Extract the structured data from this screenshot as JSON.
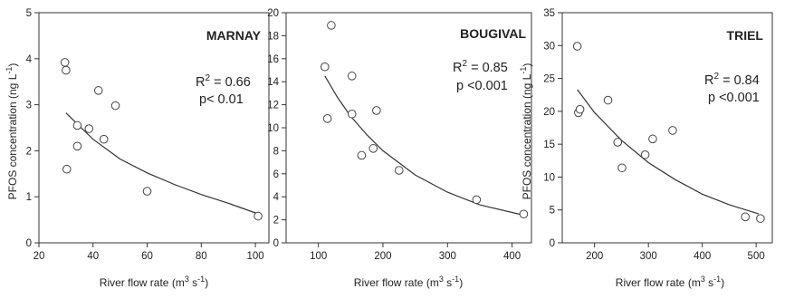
{
  "chart_data": [
    {
      "type": "scatter",
      "title": "MARNAY",
      "xlabel": "River flow rate (m3 s-1)",
      "ylabel": "PFOS concentration (ng L-1)",
      "xlim": [
        20,
        105
      ],
      "ylim": [
        0,
        5
      ],
      "xticks": [
        20,
        40,
        60,
        80,
        100
      ],
      "yticks": [
        0,
        1,
        2,
        3,
        4,
        5
      ],
      "annotations": {
        "r2_label": "R",
        "r2_sup": "2",
        "r2_value": " = 0.66",
        "p_text": "p< 0.01"
      },
      "points": [
        {
          "x": 29.6,
          "y": 3.92
        },
        {
          "x": 30.0,
          "y": 3.75
        },
        {
          "x": 30.3,
          "y": 1.6
        },
        {
          "x": 34.2,
          "y": 2.55
        },
        {
          "x": 34.2,
          "y": 2.1
        },
        {
          "x": 38.5,
          "y": 2.48
        },
        {
          "x": 42.0,
          "y": 3.31
        },
        {
          "x": 44.0,
          "y": 2.25
        },
        {
          "x": 48.3,
          "y": 2.98
        },
        {
          "x": 60.0,
          "y": 1.12
        },
        {
          "x": 101.0,
          "y": 0.58
        }
      ],
      "fit_curve": [
        {
          "x": 30,
          "y": 2.82
        },
        {
          "x": 40,
          "y": 2.25
        },
        {
          "x": 50,
          "y": 1.82
        },
        {
          "x": 60,
          "y": 1.52
        },
        {
          "x": 70,
          "y": 1.27
        },
        {
          "x": 80,
          "y": 1.05
        },
        {
          "x": 90,
          "y": 0.86
        },
        {
          "x": 101,
          "y": 0.63
        }
      ]
    },
    {
      "type": "scatter",
      "title": "BOUGIVAL",
      "xlabel": "River flow rate (m3 s-1)",
      "ylabel": "",
      "xlim": [
        50,
        430
      ],
      "ylim": [
        0,
        20
      ],
      "xticks": [
        100,
        200,
        300,
        400
      ],
      "yticks": [
        0,
        2,
        4,
        6,
        8,
        10,
        12,
        14,
        16,
        18,
        20
      ],
      "annotations": {
        "r2_label": "R",
        "r2_sup": "2",
        "r2_value": " = 0.85",
        "p_text": "p <0.001"
      },
      "points": [
        {
          "x": 110,
          "y": 15.3
        },
        {
          "x": 114,
          "y": 10.8
        },
        {
          "x": 120,
          "y": 18.9
        },
        {
          "x": 152,
          "y": 14.5
        },
        {
          "x": 152,
          "y": 11.2
        },
        {
          "x": 167,
          "y": 7.6
        },
        {
          "x": 185,
          "y": 8.2
        },
        {
          "x": 190,
          "y": 11.5
        },
        {
          "x": 225,
          "y": 6.3
        },
        {
          "x": 345,
          "y": 3.75
        },
        {
          "x": 418,
          "y": 2.5
        }
      ],
      "fit_curve": [
        {
          "x": 110,
          "y": 14.5
        },
        {
          "x": 130,
          "y": 12.6
        },
        {
          "x": 150,
          "y": 11.0
        },
        {
          "x": 175,
          "y": 9.4
        },
        {
          "x": 200,
          "y": 8.0
        },
        {
          "x": 250,
          "y": 5.9
        },
        {
          "x": 300,
          "y": 4.4
        },
        {
          "x": 350,
          "y": 3.3
        },
        {
          "x": 418,
          "y": 2.4
        }
      ]
    },
    {
      "type": "scatter",
      "title": "TRIEL",
      "xlabel": "River flow rate (m3 s-1)",
      "ylabel": "PFOS concentration (ng L-1)",
      "xlim": [
        140,
        530
      ],
      "ylim": [
        0,
        35
      ],
      "xticks": [
        200,
        300,
        400,
        500
      ],
      "yticks": [
        0,
        5,
        10,
        15,
        20,
        25,
        30,
        35
      ],
      "annotations": {
        "r2_label": "R",
        "r2_sup": "2",
        "r2_value": " = 0.84",
        "p_text": "p <0.001"
      },
      "points": [
        {
          "x": 168,
          "y": 29.9
        },
        {
          "x": 170,
          "y": 19.8
        },
        {
          "x": 173,
          "y": 20.3
        },
        {
          "x": 225,
          "y": 21.7
        },
        {
          "x": 243,
          "y": 15.3
        },
        {
          "x": 251,
          "y": 11.4
        },
        {
          "x": 294,
          "y": 13.4
        },
        {
          "x": 308,
          "y": 15.8
        },
        {
          "x": 345,
          "y": 17.1
        },
        {
          "x": 480,
          "y": 3.95
        },
        {
          "x": 508,
          "y": 3.7
        }
      ],
      "fit_curve": [
        {
          "x": 168,
          "y": 23.3
        },
        {
          "x": 200,
          "y": 19.8
        },
        {
          "x": 250,
          "y": 15.6
        },
        {
          "x": 300,
          "y": 12.2
        },
        {
          "x": 350,
          "y": 9.6
        },
        {
          "x": 400,
          "y": 7.4
        },
        {
          "x": 450,
          "y": 5.8
        },
        {
          "x": 505,
          "y": 4.4
        }
      ]
    }
  ],
  "units": {
    "x_prefix": "River flow rate (m",
    "x_sup1": "3",
    "x_mid": " s",
    "x_sup2": "-1",
    "x_suffix": ")",
    "y_prefix": "PFOS concentration (ng L",
    "y_sup": "-1",
    "y_suffix": ")"
  }
}
